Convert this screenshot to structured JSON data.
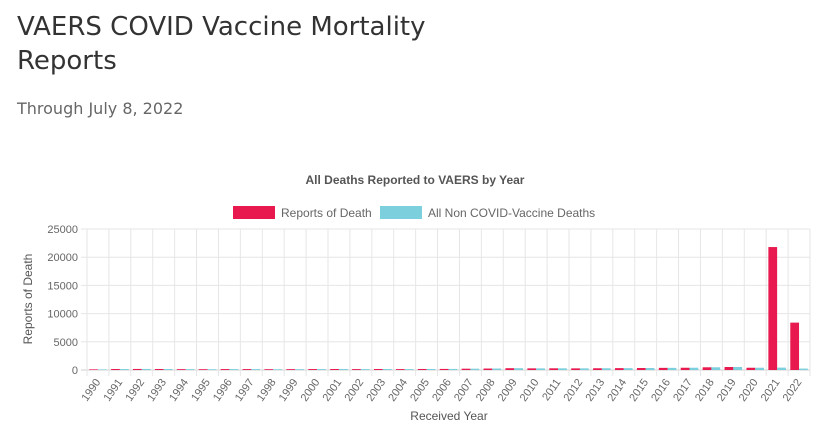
{
  "page": {
    "title": "VAERS COVID Vaccine Mortality Reports",
    "subtitle": "Through July 8, 2022"
  },
  "chart_data": {
    "type": "bar",
    "title": "All Deaths Reported to VAERS by Year",
    "xlabel": "Received Year",
    "ylabel": "Reports of Death",
    "ylim": [
      0,
      25000
    ],
    "yticks": [
      0,
      5000,
      10000,
      15000,
      20000,
      25000
    ],
    "grid": true,
    "legend_position": "top",
    "categories": [
      "1990",
      "1991",
      "1992",
      "1993",
      "1994",
      "1995",
      "1996",
      "1997",
      "1998",
      "1999",
      "2000",
      "2001",
      "2002",
      "2003",
      "2004",
      "2005",
      "2006",
      "2007",
      "2008",
      "2009",
      "2010",
      "2011",
      "2012",
      "2013",
      "2014",
      "2015",
      "2016",
      "2017",
      "2018",
      "2019",
      "2020",
      "2021",
      "2022"
    ],
    "series": [
      {
        "name": "Reports of Death",
        "color": "#e8194f",
        "values": [
          110,
          175,
          185,
          175,
          150,
          140,
          165,
          160,
          140,
          150,
          165,
          175,
          160,
          175,
          160,
          180,
          190,
          230,
          260,
          320,
          290,
          300,
          290,
          310,
          330,
          350,
          380,
          400,
          480,
          530,
          400,
          21800,
          8400
        ]
      },
      {
        "name": "All Non COVID-Vaccine Deaths",
        "color": "#7ccfdc",
        "values": [
          110,
          175,
          185,
          175,
          150,
          140,
          165,
          160,
          140,
          150,
          165,
          175,
          160,
          175,
          160,
          180,
          190,
          230,
          260,
          320,
          290,
          300,
          290,
          310,
          330,
          350,
          380,
          400,
          480,
          530,
          400,
          420,
          250
        ]
      }
    ]
  }
}
